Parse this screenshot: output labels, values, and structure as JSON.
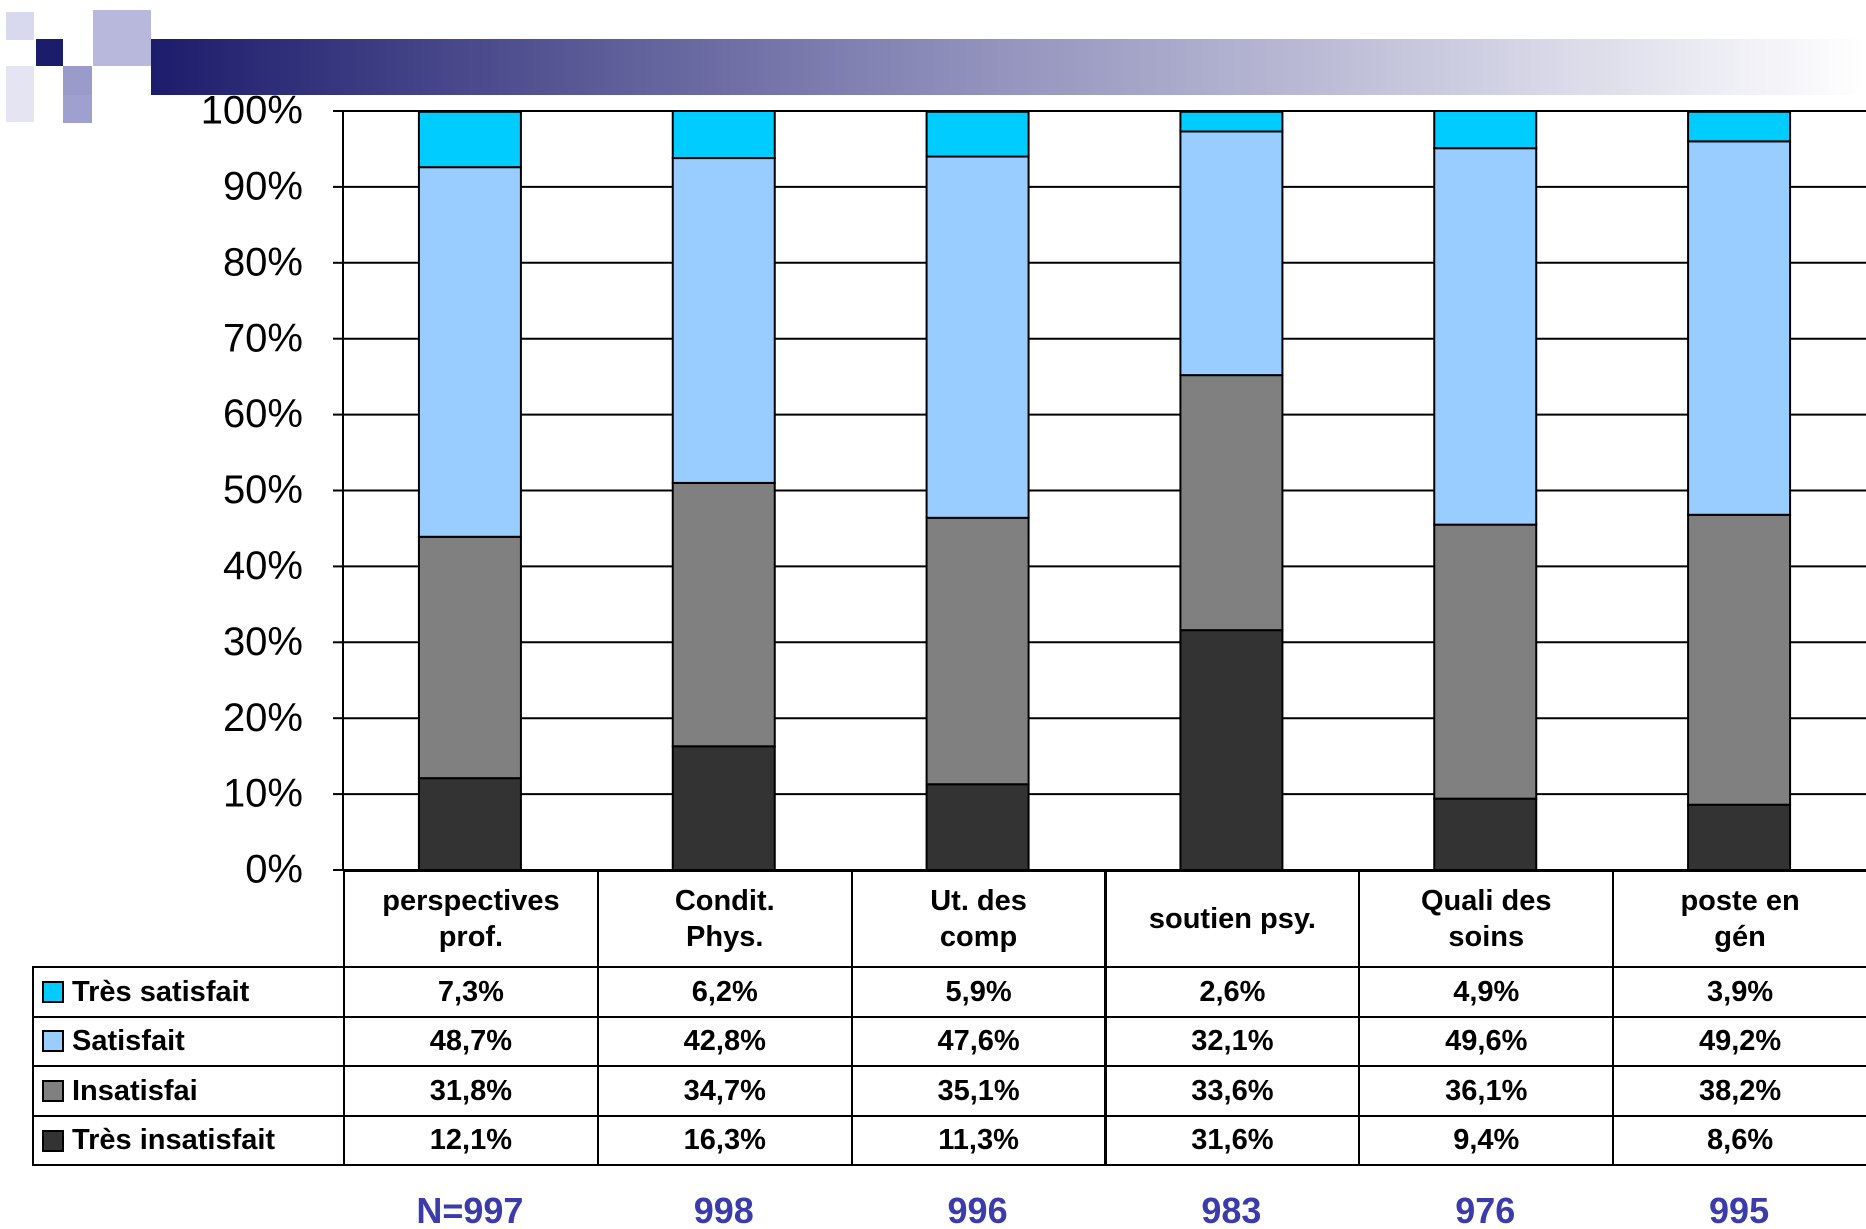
{
  "chart_data": {
    "type": "stacked_bar_percent",
    "categories": [
      "perspectives prof.",
      "Condit. Phys.",
      "Ut. des comp",
      "soutien psy.",
      "Quali des soins",
      "poste en gén"
    ],
    "series": [
      {
        "name": "Très satisfait",
        "color": "#00ccff",
        "values": [
          7.3,
          6.2,
          5.9,
          2.6,
          4.9,
          3.9
        ],
        "value_labels": [
          "7,3%",
          "6,2%",
          "5,9%",
          "2,6%",
          "4,9%",
          "3,9%"
        ]
      },
      {
        "name": "Satisfait",
        "color": "#99ccff",
        "values": [
          48.7,
          42.8,
          47.6,
          32.1,
          49.6,
          49.2
        ],
        "value_labels": [
          "48,7%",
          "42,8%",
          "47,6%",
          "32,1%",
          "49,6%",
          "49,2%"
        ]
      },
      {
        "name": "Insatisfai",
        "color": "#808080",
        "values": [
          31.8,
          34.7,
          35.1,
          33.6,
          36.1,
          38.2
        ],
        "value_labels": [
          "31,8%",
          "34,7%",
          "35,1%",
          "33,6%",
          "36,1%",
          "38,2%"
        ]
      },
      {
        "name": "Très insatisfait",
        "color": "#333333",
        "values": [
          12.1,
          16.3,
          11.3,
          31.6,
          9.4,
          8.6
        ],
        "value_labels": [
          "12,1%",
          "16,3%",
          "11,3%",
          "31,6%",
          "9,4%",
          "8,6%"
        ]
      }
    ],
    "ylim": [
      0,
      100
    ],
    "yticks": [
      {
        "value": 0,
        "label": "0%"
      },
      {
        "value": 10,
        "label": "10%"
      },
      {
        "value": 20,
        "label": "20%"
      },
      {
        "value": 30,
        "label": "30%"
      },
      {
        "value": 40,
        "label": "40%"
      },
      {
        "value": 50,
        "label": "50%"
      },
      {
        "value": 60,
        "label": "60%"
      },
      {
        "value": 70,
        "label": "70%"
      },
      {
        "value": 80,
        "label": "80%"
      },
      {
        "value": 90,
        "label": "90%"
      },
      {
        "value": 100,
        "label": "100%"
      }
    ],
    "grid": true,
    "sample_sizes": [
      "N=997",
      "998",
      "996",
      "983",
      "976",
      "995"
    ]
  }
}
